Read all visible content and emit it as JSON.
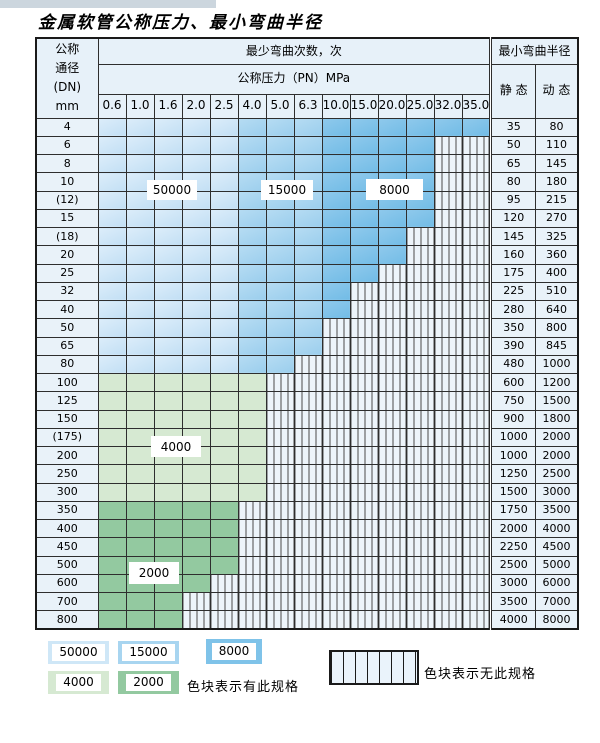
{
  "page": {
    "title": "金属软管公称压力、最小弯曲半径"
  },
  "table": {
    "header": {
      "dn_lines": [
        "公称",
        "通径",
        "(DN)",
        "mm"
      ],
      "bend_cycles": "最少弯曲次数，次",
      "pressure": "公称压力（PN）MPa",
      "radius": "最小弯曲半径",
      "static": "静 态",
      "dynamic": "动 态",
      "pressures": [
        "0.6",
        "1.0",
        "1.6",
        "2.0",
        "2.5",
        "4.0",
        "5.0",
        "6.3",
        "10.0",
        "15.0",
        "20.0",
        "25.0",
        "32.0",
        "35.0"
      ]
    },
    "rows": [
      {
        "dn": "4",
        "static": "35",
        "dynamic": "80",
        "group": "blue",
        "colored": 14
      },
      {
        "dn": "6",
        "static": "50",
        "dynamic": "110",
        "group": "blue",
        "colored": 12
      },
      {
        "dn": "8",
        "static": "65",
        "dynamic": "145",
        "group": "blue",
        "colored": 12
      },
      {
        "dn": "10",
        "static": "80",
        "dynamic": "180",
        "group": "blue",
        "colored": 12
      },
      {
        "dn": "(12)",
        "static": "95",
        "dynamic": "215",
        "group": "blue",
        "colored": 12
      },
      {
        "dn": "15",
        "static": "120",
        "dynamic": "270",
        "group": "blue",
        "colored": 12
      },
      {
        "dn": "(18)",
        "static": "145",
        "dynamic": "325",
        "group": "blue",
        "colored": 11
      },
      {
        "dn": "20",
        "static": "160",
        "dynamic": "360",
        "group": "blue",
        "colored": 11
      },
      {
        "dn": "25",
        "static": "175",
        "dynamic": "400",
        "group": "blue",
        "colored": 10
      },
      {
        "dn": "32",
        "static": "225",
        "dynamic": "510",
        "group": "blue",
        "colored": 9
      },
      {
        "dn": "40",
        "static": "280",
        "dynamic": "640",
        "group": "blue",
        "colored": 9
      },
      {
        "dn": "50",
        "static": "350",
        "dynamic": "800",
        "group": "blue",
        "colored": 8
      },
      {
        "dn": "65",
        "static": "390",
        "dynamic": "845",
        "group": "blue",
        "colored": 8
      },
      {
        "dn": "80",
        "static": "480",
        "dynamic": "1000",
        "group": "blue",
        "colored": 7
      },
      {
        "dn": "100",
        "static": "600",
        "dynamic": "1200",
        "group": "g4000",
        "colored": 6
      },
      {
        "dn": "125",
        "static": "750",
        "dynamic": "1500",
        "group": "g4000",
        "colored": 6
      },
      {
        "dn": "150",
        "static": "900",
        "dynamic": "1800",
        "group": "g4000",
        "colored": 6
      },
      {
        "dn": "(175)",
        "static": "1000",
        "dynamic": "2000",
        "group": "g4000",
        "colored": 6
      },
      {
        "dn": "200",
        "static": "1000",
        "dynamic": "2000",
        "group": "g4000",
        "colored": 6
      },
      {
        "dn": "250",
        "static": "1250",
        "dynamic": "2500",
        "group": "g4000",
        "colored": 6
      },
      {
        "dn": "300",
        "static": "1500",
        "dynamic": "3000",
        "group": "g4000",
        "colored": 6
      },
      {
        "dn": "350",
        "static": "1750",
        "dynamic": "3500",
        "group": "g2000",
        "colored": 5
      },
      {
        "dn": "400",
        "static": "2000",
        "dynamic": "4000",
        "group": "g2000",
        "colored": 5
      },
      {
        "dn": "450",
        "static": "2250",
        "dynamic": "4500",
        "group": "g2000",
        "colored": 5
      },
      {
        "dn": "500",
        "static": "2500",
        "dynamic": "5000",
        "group": "g2000",
        "colored": 5
      },
      {
        "dn": "600",
        "static": "3000",
        "dynamic": "6000",
        "group": "g2000",
        "colored": 4
      },
      {
        "dn": "700",
        "static": "3500",
        "dynamic": "7000",
        "group": "g2000",
        "colored": 3
      },
      {
        "dn": "800",
        "static": "4000",
        "dynamic": "8000",
        "group": "g2000",
        "colored": 3
      }
    ],
    "blue_zone_counts": {
      "c50000": 5,
      "c15000": 3,
      "c8000": 6
    }
  },
  "overlay_labels": [
    "50000",
    "15000",
    "8000",
    "4000",
    "2000"
  ],
  "legend": {
    "items": [
      {
        "label": "50000",
        "color": "#cfe7f7"
      },
      {
        "label": "15000",
        "color": "#a8d5f0"
      },
      {
        "label": "8000",
        "color": "#7fc3e9"
      },
      {
        "label": "4000",
        "color": "#d6e9d2"
      },
      {
        "label": "2000",
        "color": "#93c9a0"
      }
    ],
    "has_spec": "色块表示有此规格",
    "no_spec": "色块表示无此规格"
  },
  "colors": {
    "c50000": "#cfe7f7",
    "c15000": "#a8d5f0",
    "c8000": "#7fc3e9",
    "c4000": "#d6e9d2",
    "c2000": "#93c9a0",
    "hatch_bg": "#edf4fa",
    "header_bg": "#e7f1f9",
    "grid_line": "#2e2e2e"
  }
}
